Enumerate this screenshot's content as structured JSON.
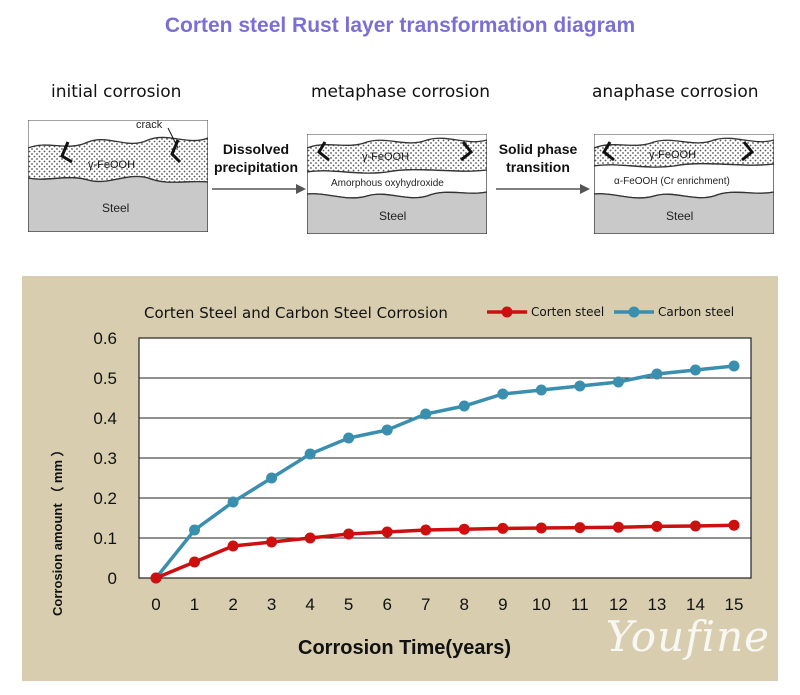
{
  "title": "Corten steel Rust layer transformation diagram",
  "diagram": {
    "stages": [
      {
        "title": "initial corrosion",
        "rust_label": "γ-FeOOH",
        "base_label": "Steel",
        "note": "crack"
      },
      {
        "title": "metaphase corrosion",
        "rust_label": "γ-FeOOH",
        "middle_label": "Amorphous oxyhydroxide",
        "base_label": "Steel"
      },
      {
        "title": "anaphase corrosion",
        "rust_label": "γ-FeOOH",
        "middle_label": "α-FeOOH (Cr enrichment)",
        "base_label": "Steel"
      }
    ],
    "arrows": [
      {
        "label_line1": "Dissolved",
        "label_line2": "precipitation"
      },
      {
        "label_line1": "Solid phase",
        "label_line2": "transition"
      }
    ]
  },
  "chart_data": {
    "type": "line",
    "title": "Corten Steel and Carbon Steel Corrosion",
    "xlabel": "Corrosion Time(years)",
    "ylabel": "Corrosion amount （ mm ）",
    "x": [
      0,
      1,
      2,
      3,
      4,
      5,
      6,
      7,
      8,
      9,
      10,
      11,
      12,
      13,
      14,
      15
    ],
    "xticks": [
      "0",
      "1",
      "2",
      "3",
      "4",
      "5",
      "6",
      "7",
      "8",
      "9",
      "10",
      "11",
      "12",
      "13",
      "14",
      "15"
    ],
    "ylim": [
      0,
      0.6
    ],
    "yticks": [
      "0",
      "0.1",
      "0.2",
      "0.3",
      "0.4",
      "0.5",
      "0.6"
    ],
    "legend_position": "top-right",
    "series": [
      {
        "name": "Corten steel",
        "color": "#cc1010",
        "values": [
          0,
          0.04,
          0.08,
          0.09,
          0.1,
          0.11,
          0.115,
          0.12,
          0.122,
          0.124,
          0.125,
          0.126,
          0.127,
          0.129,
          0.13,
          0.132
        ]
      },
      {
        "name": "Carbon steel",
        "color": "#3a8fae",
        "values": [
          0,
          0.12,
          0.19,
          0.25,
          0.31,
          0.35,
          0.37,
          0.41,
          0.43,
          0.46,
          0.47,
          0.48,
          0.49,
          0.51,
          0.52,
          0.53
        ]
      }
    ],
    "grid": true
  },
  "watermark": "Youfine"
}
